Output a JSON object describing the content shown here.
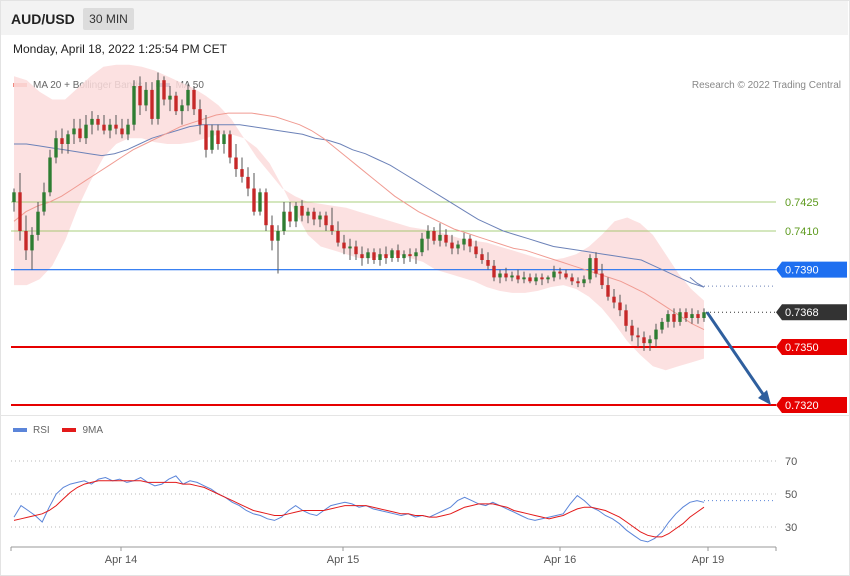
{
  "header": {
    "symbol": "AUD/USD",
    "timeframe": "30 MIN"
  },
  "datetime": "Monday, April 18, 2022 1:25:54 PM CET",
  "legend": [
    {
      "label": "MA 20 + Bollinger Bands",
      "color": "#f08a80"
    },
    {
      "label": "MA 50",
      "color": "#2f5f9e"
    }
  ],
  "credit": "Research © 2022 Trading Central",
  "rsi_legend": [
    {
      "label": "RSI",
      "color": "#5b85d9"
    },
    {
      "label": "9MA",
      "color": "#e31a1a"
    }
  ],
  "chart_data": [
    {
      "type": "candlestick",
      "title": "AUD/USD",
      "timeframe": "30 MIN",
      "x_ticks": [
        "Apr 14",
        "Apr 15",
        "Apr 16",
        "Apr 19"
      ],
      "levels": [
        {
          "value": 0.7425,
          "label": "0.7425",
          "style": "thin",
          "color": "#8cbf50",
          "text_color": "#5d9a1e"
        },
        {
          "value": 0.741,
          "label": "0.7410",
          "style": "thin",
          "color": "#8cbf50",
          "text_color": "#5d9a1e"
        },
        {
          "value": 0.739,
          "label": "0.7390",
          "style": "badge",
          "color": "#1e6ff0"
        },
        {
          "value": 0.7368,
          "label": "0.7368",
          "style": "current",
          "color": "#333333"
        },
        {
          "value": 0.735,
          "label": "0.7350",
          "style": "badge",
          "color": "#e60000"
        },
        {
          "value": 0.732,
          "label": "0.7320",
          "style": "badge",
          "color": "#e60000"
        }
      ],
      "forecast_arrow": {
        "from": 0.7368,
        "to": 0.732,
        "color": "#2f5f9e"
      },
      "candles": [
        [
          0.7425,
          0.7432,
          0.742,
          0.743
        ],
        [
          0.743,
          0.744,
          0.7405,
          0.741
        ],
        [
          0.741,
          0.7418,
          0.7395,
          0.74
        ],
        [
          0.74,
          0.7412,
          0.739,
          0.7408
        ],
        [
          0.7408,
          0.7425,
          0.7405,
          0.742
        ],
        [
          0.742,
          0.7435,
          0.7418,
          0.743
        ],
        [
          0.743,
          0.7452,
          0.7428,
          0.7448
        ],
        [
          0.7448,
          0.7462,
          0.7445,
          0.7458
        ],
        [
          0.7458,
          0.7463,
          0.745,
          0.7455
        ],
        [
          0.7455,
          0.7462,
          0.745,
          0.746
        ],
        [
          0.746,
          0.7468,
          0.7455,
          0.7463
        ],
        [
          0.7463,
          0.7468,
          0.7456,
          0.7458
        ],
        [
          0.7458,
          0.747,
          0.7455,
          0.7465
        ],
        [
          0.7465,
          0.7472,
          0.746,
          0.7468
        ],
        [
          0.7468,
          0.747,
          0.7462,
          0.7465
        ],
        [
          0.7465,
          0.747,
          0.746,
          0.7462
        ],
        [
          0.7462,
          0.7468,
          0.7458,
          0.7465
        ],
        [
          0.7465,
          0.747,
          0.746,
          0.7463
        ],
        [
          0.7463,
          0.7468,
          0.7458,
          0.746
        ],
        [
          0.746,
          0.7468,
          0.7457,
          0.7465
        ],
        [
          0.7465,
          0.7488,
          0.7462,
          0.7485
        ],
        [
          0.7485,
          0.749,
          0.747,
          0.7475
        ],
        [
          0.7475,
          0.7487,
          0.7472,
          0.7483
        ],
        [
          0.7483,
          0.7487,
          0.7465,
          0.7468
        ],
        [
          0.7468,
          0.7492,
          0.7465,
          0.7488
        ],
        [
          0.7488,
          0.749,
          0.7475,
          0.7478
        ],
        [
          0.7478,
          0.7485,
          0.7472,
          0.748
        ],
        [
          0.748,
          0.7482,
          0.747,
          0.7472
        ],
        [
          0.7472,
          0.7478,
          0.7465,
          0.7475
        ],
        [
          0.7475,
          0.7486,
          0.7472,
          0.7483
        ],
        [
          0.7483,
          0.7485,
          0.747,
          0.7473
        ],
        [
          0.7473,
          0.7478,
          0.746,
          0.7465
        ],
        [
          0.7465,
          0.747,
          0.7448,
          0.7452
        ],
        [
          0.7452,
          0.7465,
          0.745,
          0.7462
        ],
        [
          0.7462,
          0.7465,
          0.7452,
          0.7455
        ],
        [
          0.7455,
          0.7462,
          0.745,
          0.746
        ],
        [
          0.746,
          0.7462,
          0.7445,
          0.7448
        ],
        [
          0.7448,
          0.7455,
          0.7438,
          0.7442
        ],
        [
          0.7442,
          0.7448,
          0.7435,
          0.7438
        ],
        [
          0.7438,
          0.7443,
          0.7428,
          0.7432
        ],
        [
          0.7432,
          0.744,
          0.7418,
          0.742
        ],
        [
          0.742,
          0.7432,
          0.7418,
          0.743
        ],
        [
          0.743,
          0.7432,
          0.741,
          0.7413
        ],
        [
          0.7413,
          0.7418,
          0.74,
          0.7405
        ],
        [
          0.7405,
          0.7413,
          0.7388,
          0.741
        ],
        [
          0.741,
          0.7425,
          0.7408,
          0.742
        ],
        [
          0.742,
          0.7425,
          0.7412,
          0.7415
        ],
        [
          0.7415,
          0.7425,
          0.7412,
          0.7423
        ],
        [
          0.7423,
          0.7426,
          0.7415,
          0.7418
        ],
        [
          0.7418,
          0.7422,
          0.7414,
          0.742
        ],
        [
          0.742,
          0.7422,
          0.7413,
          0.7416
        ],
        [
          0.7416,
          0.742,
          0.7412,
          0.7418
        ],
        [
          0.7418,
          0.742,
          0.741,
          0.7413
        ],
        [
          0.7413,
          0.7422,
          0.7408,
          0.741
        ],
        [
          0.741,
          0.7415,
          0.7402,
          0.7404
        ],
        [
          0.7404,
          0.7408,
          0.7398,
          0.7401
        ],
        [
          0.7401,
          0.7406,
          0.7395,
          0.7402
        ],
        [
          0.7402,
          0.7405,
          0.7395,
          0.7398
        ],
        [
          0.7398,
          0.7402,
          0.7392,
          0.7396
        ],
        [
          0.7396,
          0.7401,
          0.7393,
          0.7399
        ],
        [
          0.7399,
          0.7401,
          0.7393,
          0.7395
        ],
        [
          0.7395,
          0.7401,
          0.7392,
          0.7398
        ],
        [
          0.7398,
          0.7402,
          0.7393,
          0.7396
        ],
        [
          0.7396,
          0.7401,
          0.7394,
          0.74
        ],
        [
          0.74,
          0.7403,
          0.7394,
          0.7396
        ],
        [
          0.7396,
          0.74,
          0.7393,
          0.7398
        ],
        [
          0.7398,
          0.7401,
          0.7394,
          0.7397
        ],
        [
          0.7397,
          0.7401,
          0.7393,
          0.7399
        ],
        [
          0.7399,
          0.7409,
          0.7397,
          0.7406
        ],
        [
          0.7406,
          0.7413,
          0.74,
          0.741
        ],
        [
          0.741,
          0.7412,
          0.7403,
          0.7405
        ],
        [
          0.7405,
          0.7414,
          0.7402,
          0.7408
        ],
        [
          0.7408,
          0.7411,
          0.7402,
          0.7404
        ],
        [
          0.7404,
          0.7408,
          0.7398,
          0.7401
        ],
        [
          0.7401,
          0.7405,
          0.7398,
          0.7403
        ],
        [
          0.7403,
          0.7409,
          0.74,
          0.7406
        ],
        [
          0.7406,
          0.7408,
          0.7399,
          0.7402
        ],
        [
          0.7402,
          0.7405,
          0.7396,
          0.7398
        ],
        [
          0.7398,
          0.7401,
          0.7393,
          0.7395
        ],
        [
          0.7395,
          0.7399,
          0.739,
          0.7392
        ],
        [
          0.7392,
          0.7395,
          0.7384,
          0.7386
        ],
        [
          0.7386,
          0.739,
          0.7383,
          0.7388
        ],
        [
          0.7388,
          0.7391,
          0.7384,
          0.7386
        ],
        [
          0.7386,
          0.7389,
          0.7384,
          0.7387
        ],
        [
          0.7387,
          0.739,
          0.7383,
          0.7385
        ],
        [
          0.7385,
          0.7389,
          0.7383,
          0.7386
        ],
        [
          0.7386,
          0.7388,
          0.7383,
          0.7384
        ],
        [
          0.7384,
          0.7388,
          0.7382,
          0.7386
        ],
        [
          0.7386,
          0.7388,
          0.7382,
          0.7385
        ],
        [
          0.7385,
          0.7387,
          0.7383,
          0.7386
        ],
        [
          0.7386,
          0.7392,
          0.7384,
          0.7389
        ],
        [
          0.7389,
          0.7391,
          0.7385,
          0.7388
        ],
        [
          0.7388,
          0.739,
          0.7385,
          0.7386
        ],
        [
          0.7386,
          0.7388,
          0.7382,
          0.7384
        ],
        [
          0.7384,
          0.7386,
          0.7381,
          0.7383
        ],
        [
          0.7383,
          0.7387,
          0.7381,
          0.7385
        ],
        [
          0.7385,
          0.7398,
          0.7383,
          0.7396
        ],
        [
          0.7396,
          0.7399,
          0.7386,
          0.7388
        ],
        [
          0.7388,
          0.7393,
          0.738,
          0.7382
        ],
        [
          0.7382,
          0.7386,
          0.7374,
          0.7376
        ],
        [
          0.7376,
          0.738,
          0.737,
          0.7373
        ],
        [
          0.7373,
          0.7377,
          0.7366,
          0.7369
        ],
        [
          0.7369,
          0.7372,
          0.7358,
          0.7361
        ],
        [
          0.7361,
          0.7364,
          0.7353,
          0.7356
        ],
        [
          0.7356,
          0.736,
          0.735,
          0.7355
        ],
        [
          0.7355,
          0.7358,
          0.7348,
          0.7352
        ],
        [
          0.7352,
          0.7356,
          0.7348,
          0.7354
        ],
        [
          0.7354,
          0.7362,
          0.735,
          0.7359
        ],
        [
          0.7359,
          0.7365,
          0.7357,
          0.7363
        ],
        [
          0.7363,
          0.7369,
          0.736,
          0.7367
        ],
        [
          0.7367,
          0.737,
          0.736,
          0.7363
        ],
        [
          0.7363,
          0.737,
          0.7361,
          0.7368
        ],
        [
          0.7368,
          0.737,
          0.7363,
          0.7365
        ],
        [
          0.7365,
          0.737,
          0.7362,
          0.7367
        ],
        [
          0.7367,
          0.7369,
          0.7362,
          0.7365
        ],
        [
          0.7365,
          0.737,
          0.7363,
          0.7368
        ]
      ],
      "ma20": [
        0.7415,
        0.742,
        0.7423,
        0.7425,
        0.7428,
        0.7432,
        0.7436,
        0.744,
        0.7444,
        0.7448,
        0.7452,
        0.7455,
        0.7458,
        0.7461,
        0.7464,
        0.7466,
        0.7468,
        0.747,
        0.7471,
        0.7471,
        0.7471,
        0.747,
        0.7469,
        0.7467,
        0.7465,
        0.7462,
        0.7458,
        0.7453,
        0.7448,
        0.7443,
        0.7438,
        0.7433,
        0.7428,
        0.7424,
        0.742,
        0.7417,
        0.7414,
        0.7411,
        0.7409,
        0.7407,
        0.7405,
        0.7403,
        0.7401,
        0.74,
        0.7398,
        0.7396,
        0.7394,
        0.7392,
        0.739,
        0.7388,
        0.7386,
        0.7384,
        0.7381,
        0.7378,
        0.7374,
        0.737,
        0.7366,
        0.7362,
        0.7359
      ],
      "bb_upper": [
        0.749,
        0.7488,
        0.7482,
        0.7478,
        0.7478,
        0.7484,
        0.749,
        0.7495,
        0.7496,
        0.7496,
        0.7495,
        0.7493,
        0.749,
        0.7487,
        0.7484,
        0.748,
        0.7475,
        0.7468,
        0.7458,
        0.7448,
        0.744,
        0.7432,
        0.7428,
        0.7425,
        0.7424,
        0.7423,
        0.7422,
        0.742,
        0.7418,
        0.7416,
        0.7414,
        0.7412,
        0.7411,
        0.741,
        0.7408,
        0.7406,
        0.7405,
        0.7404,
        0.7402,
        0.74,
        0.7398,
        0.7396,
        0.7395,
        0.7396,
        0.7398,
        0.7402,
        0.7408,
        0.7415,
        0.7417,
        0.7414,
        0.7408,
        0.7398,
        0.7388,
        0.738,
        0.7374
      ],
      "bb_lower": [
        0.7382,
        0.7382,
        0.7385,
        0.7392,
        0.7405,
        0.7422,
        0.7436,
        0.7448,
        0.7455,
        0.7458,
        0.7458,
        0.7456,
        0.7455,
        0.7455,
        0.7456,
        0.7458,
        0.746,
        0.746,
        0.7458,
        0.7453,
        0.7445,
        0.7433,
        0.742,
        0.7408,
        0.7402,
        0.74,
        0.7398,
        0.7396,
        0.7396,
        0.7397,
        0.7398,
        0.7396,
        0.7394,
        0.739,
        0.7388,
        0.7386,
        0.7384,
        0.7381,
        0.7379,
        0.7378,
        0.7378,
        0.7379,
        0.7381,
        0.7382,
        0.738,
        0.7376,
        0.737,
        0.7362,
        0.7353,
        0.7346,
        0.734,
        0.7338,
        0.734,
        0.7342,
        0.7344
      ],
      "ma50": [
        0.7455,
        0.7455,
        0.7454,
        0.7453,
        0.7452,
        0.7451,
        0.745,
        0.7449,
        0.745,
        0.7452,
        0.7455,
        0.7458,
        0.746,
        0.7462,
        0.7464,
        0.7465,
        0.7465,
        0.7465,
        0.7465,
        0.7464,
        0.7463,
        0.7462,
        0.7461,
        0.746,
        0.7458,
        0.7457,
        0.7455,
        0.7452,
        0.745,
        0.7447,
        0.7444,
        0.744,
        0.7436,
        0.7432,
        0.7428,
        0.7424,
        0.742,
        0.7416,
        0.7413,
        0.741,
        0.7408,
        0.7406,
        0.7404,
        0.7402,
        0.7401,
        0.74,
        0.7399,
        0.7398,
        0.7397,
        0.7396,
        0.7395,
        0.7392,
        0.7389,
        0.7386,
        0.7383,
        0.7381
      ]
    },
    {
      "type": "line",
      "title": "RSI",
      "y_ticks": [
        30,
        50,
        70
      ],
      "x_ticks": [
        "Apr 14",
        "Apr 15",
        "Apr 16",
        "Apr 19"
      ],
      "series": [
        {
          "name": "RSI",
          "color": "#5b85d9",
          "values": [
            36,
            43,
            40,
            37,
            33,
            42,
            50,
            54,
            56,
            57,
            58,
            56,
            59,
            60,
            58,
            59,
            57,
            58,
            60,
            57,
            55,
            56,
            59,
            61,
            56,
            58,
            57,
            55,
            53,
            50,
            48,
            45,
            43,
            40,
            38,
            37,
            35,
            34,
            36,
            40,
            43,
            40,
            38,
            37,
            40,
            43,
            44,
            45,
            44,
            42,
            43,
            41,
            40,
            39,
            38,
            37,
            38,
            36,
            37,
            36,
            38,
            40,
            42,
            46,
            48,
            46,
            44,
            43,
            45,
            43,
            41,
            39,
            37,
            35,
            34,
            35,
            36,
            37,
            38,
            44,
            49,
            46,
            42,
            40,
            37,
            35,
            32,
            28,
            25,
            22,
            21,
            23,
            27,
            33,
            38,
            42,
            45,
            46,
            45
          ]
        },
        {
          "name": "9MA",
          "color": "#e31a1a",
          "values": [
            34,
            35,
            36,
            37,
            38,
            40,
            43,
            47,
            51,
            54,
            56,
            57,
            58,
            58,
            58,
            58,
            58,
            58,
            58,
            57,
            57,
            57,
            57,
            57,
            56,
            56,
            55,
            54,
            52,
            50,
            48,
            46,
            44,
            42,
            40,
            39,
            38,
            37,
            37,
            38,
            39,
            40,
            40,
            40,
            40,
            41,
            42,
            43,
            43,
            43,
            43,
            42,
            41,
            40,
            39,
            38,
            38,
            37,
            37,
            36,
            36,
            37,
            38,
            40,
            42,
            43,
            44,
            44,
            44,
            43,
            42,
            40,
            39,
            38,
            37,
            36,
            35,
            36,
            37,
            39,
            41,
            42,
            42,
            41,
            40,
            38,
            36,
            33,
            30,
            27,
            25,
            24,
            24,
            26,
            29,
            32,
            36,
            39,
            42
          ]
        }
      ]
    }
  ]
}
